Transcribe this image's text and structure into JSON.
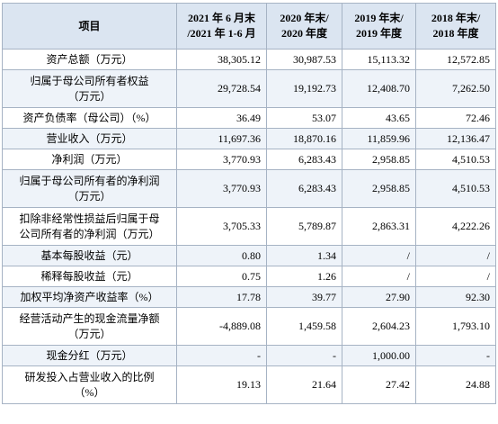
{
  "table": {
    "header": [
      [
        "项目"
      ],
      [
        "2021 年 6 月末",
        "/2021 年 1-6 月"
      ],
      [
        "2020 年末/",
        "2020 年度"
      ],
      [
        "2019 年末/",
        "2019 年度"
      ],
      [
        "2018 年末/",
        "2018 年度"
      ]
    ],
    "rows": [
      {
        "label": [
          "资产总额（万元）"
        ],
        "values": [
          "38,305.12",
          "30,987.53",
          "15,113.32",
          "12,572.85"
        ]
      },
      {
        "label": [
          "归属于母公司所有者权益",
          "（万元）"
        ],
        "values": [
          "29,728.54",
          "19,192.73",
          "12,408.70",
          "7,262.50"
        ]
      },
      {
        "label": [
          "资产负债率（母公司）（%）"
        ],
        "values": [
          "36.49",
          "53.07",
          "43.65",
          "72.46"
        ]
      },
      {
        "label": [
          "营业收入（万元）"
        ],
        "values": [
          "11,697.36",
          "18,870.16",
          "11,859.96",
          "12,136.47"
        ]
      },
      {
        "label": [
          "净利润（万元）"
        ],
        "values": [
          "3,770.93",
          "6,283.43",
          "2,958.85",
          "4,510.53"
        ]
      },
      {
        "label": [
          "归属于母公司所有者的净利润",
          "（万元）"
        ],
        "values": [
          "3,770.93",
          "6,283.43",
          "2,958.85",
          "4,510.53"
        ]
      },
      {
        "label": [
          "扣除非经常性损益后归属于母",
          "公司所有者的净利润（万元）"
        ],
        "values": [
          "3,705.33",
          "5,789.87",
          "2,863.31",
          "4,222.26"
        ]
      },
      {
        "label": [
          "基本每股收益（元）"
        ],
        "values": [
          "0.80",
          "1.34",
          "/",
          "/"
        ]
      },
      {
        "label": [
          "稀释每股收益（元）"
        ],
        "values": [
          "0.75",
          "1.26",
          "/",
          "/"
        ]
      },
      {
        "label": [
          "加权平均净资产收益率（%）"
        ],
        "values": [
          "17.78",
          "39.77",
          "27.90",
          "92.30"
        ]
      },
      {
        "label": [
          "经营活动产生的现金流量净额",
          "（万元）"
        ],
        "values": [
          "-4,889.08",
          "1,459.58",
          "2,604.23",
          "1,793.10"
        ]
      },
      {
        "label": [
          "现金分红（万元）"
        ],
        "values": [
          "-",
          "-",
          "1,000.00",
          "-"
        ]
      },
      {
        "label": [
          "研发投入占营业收入的比例",
          "（%）"
        ],
        "values": [
          "19.13",
          "21.64",
          "27.42",
          "24.88"
        ]
      }
    ]
  }
}
